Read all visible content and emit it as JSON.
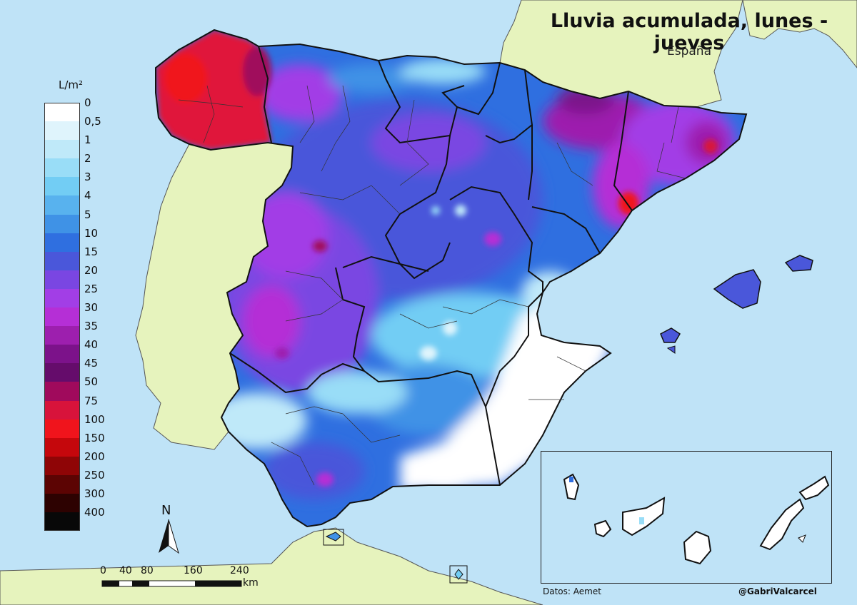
{
  "title": "Lluvia acumulada, lunes - jueves",
  "subtitle": "España",
  "legend": {
    "unit": "L/m²",
    "items": [
      {
        "label": "0",
        "color": "#ffffff"
      },
      {
        "label": "0,5",
        "color": "#dff4fc"
      },
      {
        "label": "1",
        "color": "#bfe9f9"
      },
      {
        "label": "2",
        "color": "#99ddf7"
      },
      {
        "label": "3",
        "color": "#72cdf4"
      },
      {
        "label": "4",
        "color": "#58b2ee"
      },
      {
        "label": "5",
        "color": "#3f92e6"
      },
      {
        "label": "10",
        "color": "#2f6fe0"
      },
      {
        "label": "15",
        "color": "#4a57da"
      },
      {
        "label": "20",
        "color": "#7a46e2"
      },
      {
        "label": "25",
        "color": "#a23ee6"
      },
      {
        "label": "30",
        "color": "#b52fd6"
      },
      {
        "label": "35",
        "color": "#9d1fae"
      },
      {
        "label": "40",
        "color": "#7c128a"
      },
      {
        "label": "45",
        "color": "#650c6b"
      },
      {
        "label": "50",
        "color": "#a00a5c"
      },
      {
        "label": "75",
        "color": "#d8133b"
      },
      {
        "label": "100",
        "color": "#f0141c"
      },
      {
        "label": "150",
        "color": "#c5070c"
      },
      {
        "label": "200",
        "color": "#8f0506"
      },
      {
        "label": "250",
        "color": "#5c0403"
      },
      {
        "label": "300",
        "color": "#2d0201"
      },
      {
        "label": "400",
        "color": "#080808"
      }
    ]
  },
  "north_label": "N",
  "scale": {
    "ticks": [
      "0",
      "40",
      "80",
      "160",
      "240"
    ],
    "unit": "km"
  },
  "credits": {
    "source": "Datos: Aemet",
    "author": "@GabriValcarcel"
  },
  "colors": {
    "sea": "#bfe3f7",
    "land_other": "#e6f3bd",
    "border": "#111111"
  }
}
